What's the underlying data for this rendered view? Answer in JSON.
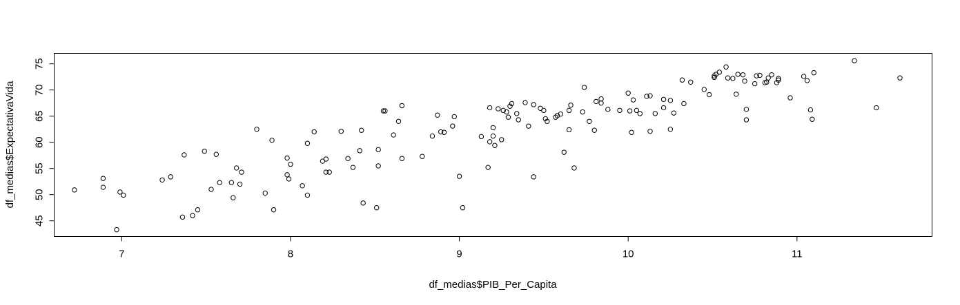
{
  "chart_data": {
    "type": "scatter",
    "title": "",
    "xlabel": "df_medias$PIB_Per_Capita",
    "ylabel": "df_medias$ExpectativaVida",
    "xlim": [
      6.6,
      11.8
    ],
    "ylim": [
      42,
      77
    ],
    "xticks": [
      "7",
      "8",
      "9",
      "10",
      "11"
    ],
    "yticks": [
      "45",
      "50",
      "55",
      "60",
      "65",
      "70",
      "75"
    ],
    "grid": false,
    "legend": "none",
    "marker": "open-circle",
    "colors": {
      "points": "#000000",
      "axes": "#000000",
      "background": "#ffffff"
    },
    "points": [
      [
        6.72,
        50.9
      ],
      [
        6.89,
        53.1
      ],
      [
        6.89,
        51.4
      ],
      [
        6.97,
        43.3
      ],
      [
        6.99,
        50.5
      ],
      [
        7.01,
        49.9
      ],
      [
        7.24,
        52.8
      ],
      [
        7.29,
        53.4
      ],
      [
        7.36,
        45.7
      ],
      [
        7.37,
        57.6
      ],
      [
        7.42,
        46.0
      ],
      [
        7.45,
        47.1
      ],
      [
        7.49,
        58.3
      ],
      [
        7.53,
        51.0
      ],
      [
        7.56,
        57.7
      ],
      [
        7.58,
        52.3
      ],
      [
        7.65,
        52.3
      ],
      [
        7.66,
        49.4
      ],
      [
        7.68,
        55.1
      ],
      [
        7.7,
        52.0
      ],
      [
        7.71,
        54.3
      ],
      [
        7.8,
        62.5
      ],
      [
        7.85,
        50.3
      ],
      [
        7.89,
        60.4
      ],
      [
        7.9,
        47.1
      ],
      [
        7.98,
        57.0
      ],
      [
        7.98,
        53.8
      ],
      [
        7.99,
        53.0
      ],
      [
        8.0,
        55.8
      ],
      [
        8.07,
        51.7
      ],
      [
        8.1,
        59.8
      ],
      [
        8.1,
        49.9
      ],
      [
        8.14,
        62.0
      ],
      [
        8.19,
        56.4
      ],
      [
        8.21,
        56.8
      ],
      [
        8.21,
        54.3
      ],
      [
        8.23,
        54.3
      ],
      [
        8.3,
        62.1
      ],
      [
        8.34,
        56.9
      ],
      [
        8.37,
        55.2
      ],
      [
        8.41,
        58.4
      ],
      [
        8.42,
        62.3
      ],
      [
        8.43,
        48.4
      ],
      [
        8.51,
        47.5
      ],
      [
        8.52,
        58.6
      ],
      [
        8.52,
        55.5
      ],
      [
        8.55,
        66.0
      ],
      [
        8.56,
        66.0
      ],
      [
        8.61,
        61.4
      ],
      [
        8.64,
        64.0
      ],
      [
        8.66,
        67.0
      ],
      [
        8.66,
        56.9
      ],
      [
        8.78,
        57.3
      ],
      [
        8.84,
        61.2
      ],
      [
        8.87,
        65.2
      ],
      [
        8.89,
        62.0
      ],
      [
        8.91,
        61.9
      ],
      [
        8.96,
        63.1
      ],
      [
        8.97,
        64.9
      ],
      [
        9.0,
        53.5
      ],
      [
        9.02,
        47.5
      ],
      [
        9.13,
        61.1
      ],
      [
        9.17,
        55.2
      ],
      [
        9.18,
        60.1
      ],
      [
        9.18,
        66.6
      ],
      [
        9.2,
        62.8
      ],
      [
        9.2,
        61.2
      ],
      [
        9.21,
        59.4
      ],
      [
        9.23,
        66.4
      ],
      [
        9.25,
        60.5
      ],
      [
        9.26,
        66.1
      ],
      [
        9.28,
        65.8
      ],
      [
        9.29,
        64.8
      ],
      [
        9.3,
        66.9
      ],
      [
        9.31,
        67.4
      ],
      [
        9.34,
        65.5
      ],
      [
        9.35,
        64.3
      ],
      [
        9.39,
        67.6
      ],
      [
        9.41,
        63.1
      ],
      [
        9.44,
        67.2
      ],
      [
        9.44,
        53.4
      ],
      [
        9.48,
        66.5
      ],
      [
        9.5,
        66.1
      ],
      [
        9.51,
        64.5
      ],
      [
        9.52,
        64.0
      ],
      [
        9.57,
        64.8
      ],
      [
        9.58,
        65.1
      ],
      [
        9.6,
        65.4
      ],
      [
        9.62,
        58.1
      ],
      [
        9.65,
        62.4
      ],
      [
        9.65,
        66.1
      ],
      [
        9.66,
        67.1
      ],
      [
        9.68,
        55.1
      ],
      [
        9.73,
        65.8
      ],
      [
        9.74,
        70.5
      ],
      [
        9.77,
        64.0
      ],
      [
        9.8,
        62.3
      ],
      [
        9.81,
        67.8
      ],
      [
        9.84,
        67.5
      ],
      [
        9.84,
        68.3
      ],
      [
        9.88,
        66.3
      ],
      [
        9.95,
        66.1
      ],
      [
        10.0,
        69.4
      ],
      [
        10.01,
        66.0
      ],
      [
        10.02,
        61.9
      ],
      [
        10.03,
        68.1
      ],
      [
        10.05,
        66.1
      ],
      [
        10.07,
        65.5
      ],
      [
        10.11,
        68.8
      ],
      [
        10.13,
        62.1
      ],
      [
        10.13,
        68.9
      ],
      [
        10.16,
        65.5
      ],
      [
        10.21,
        68.2
      ],
      [
        10.21,
        66.6
      ],
      [
        10.25,
        62.5
      ],
      [
        10.25,
        68.0
      ],
      [
        10.27,
        65.6
      ],
      [
        10.32,
        71.9
      ],
      [
        10.33,
        67.4
      ],
      [
        10.37,
        71.5
      ],
      [
        10.45,
        70.1
      ],
      [
        10.48,
        69.1
      ],
      [
        10.51,
        72.4
      ],
      [
        10.51,
        72.7
      ],
      [
        10.52,
        73.0
      ],
      [
        10.54,
        73.4
      ],
      [
        10.58,
        74.4
      ],
      [
        10.59,
        72.3
      ],
      [
        10.62,
        72.2
      ],
      [
        10.64,
        69.2
      ],
      [
        10.65,
        73.0
      ],
      [
        10.68,
        72.9
      ],
      [
        10.69,
        71.7
      ],
      [
        10.7,
        64.3
      ],
      [
        10.7,
        66.3
      ],
      [
        10.75,
        71.2
      ],
      [
        10.76,
        72.7
      ],
      [
        10.78,
        72.8
      ],
      [
        10.81,
        71.4
      ],
      [
        10.82,
        71.5
      ],
      [
        10.83,
        72.3
      ],
      [
        10.85,
        72.9
      ],
      [
        10.88,
        71.4
      ],
      [
        10.89,
        72.2
      ],
      [
        10.89,
        71.9
      ],
      [
        10.96,
        68.5
      ],
      [
        11.04,
        72.6
      ],
      [
        11.06,
        71.8
      ],
      [
        11.08,
        66.2
      ],
      [
        11.09,
        64.4
      ],
      [
        11.1,
        73.3
      ],
      [
        11.34,
        75.6
      ],
      [
        11.47,
        66.6
      ],
      [
        11.61,
        72.3
      ]
    ]
  }
}
